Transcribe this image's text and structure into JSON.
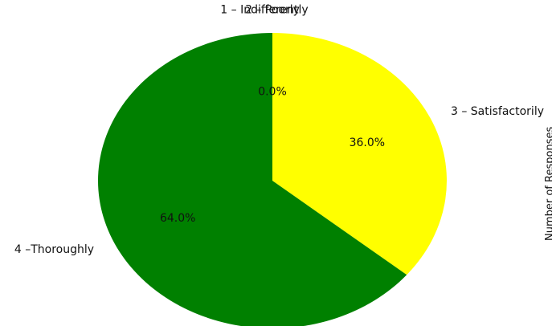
{
  "chart_data": {
    "type": "pie",
    "title": "",
    "ylabel": "Number of Responses",
    "start_angle_deg": 90,
    "direction": "clockwise",
    "slices": [
      {
        "label": "1 – Indifferently",
        "percent": 0.0,
        "pct_label": "",
        "color": "#008000"
      },
      {
        "label": "2 – Poorly",
        "percent": 0.0,
        "pct_label": "0.0%",
        "color": "#008000"
      },
      {
        "label": "3 – Satisfactorily",
        "percent": 36.0,
        "pct_label": "36.0%",
        "color": "#ffff00"
      },
      {
        "label": "4 –Thoroughly",
        "percent": 64.0,
        "pct_label": "64.0%",
        "color": "#008000"
      }
    ]
  }
}
